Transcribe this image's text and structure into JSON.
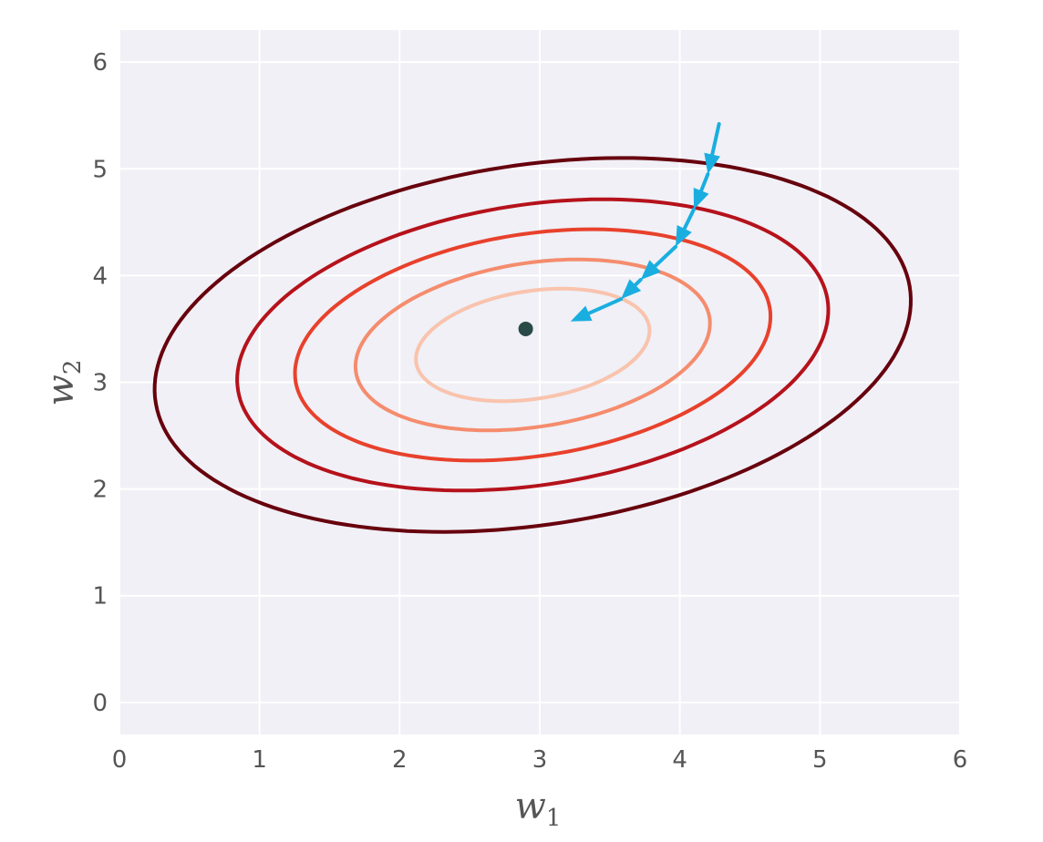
{
  "chart_data": {
    "type": "line",
    "title": "",
    "xlabel": "w",
    "xlabel_sub": "1",
    "ylabel": "w",
    "ylabel_sub": "2",
    "xlim": [
      0,
      6
    ],
    "ylim": [
      -0.3,
      6.3
    ],
    "xticks": [
      "0",
      "1",
      "2",
      "3",
      "4",
      "5",
      "6"
    ],
    "yticks": [
      "0",
      "1",
      "2",
      "3",
      "4",
      "5",
      "6"
    ],
    "grid": true,
    "background": "#f0f0f6",
    "grid_color": "#ffffff",
    "minimum_point": {
      "x": 2.9,
      "y": 3.5,
      "color": "#2a4a48"
    },
    "contours": [
      {
        "level": 1,
        "center": [
          2.95,
          3.35
        ],
        "a": 0.85,
        "b": 0.5,
        "angle_deg": 14,
        "color": "#f9c3ad"
      },
      {
        "level": 2,
        "center": [
          2.95,
          3.35
        ],
        "a": 1.29,
        "b": 0.76,
        "angle_deg": 14,
        "color": "#f58c6d"
      },
      {
        "level": 3,
        "center": [
          2.95,
          3.35
        ],
        "a": 1.73,
        "b": 1.03,
        "angle_deg": 14,
        "color": "#e8412c"
      },
      {
        "level": 4,
        "center": [
          2.95,
          3.35
        ],
        "a": 2.15,
        "b": 1.3,
        "angle_deg": 14,
        "color": "#b5121b"
      },
      {
        "level": 5,
        "center": [
          2.95,
          3.35
        ],
        "a": 2.75,
        "b": 1.67,
        "angle_deg": 14,
        "color": "#67000d"
      }
    ],
    "descent_path": {
      "color": "#1aaee0",
      "points": [
        [
          4.28,
          5.42
        ],
        [
          4.2,
          4.95
        ],
        [
          4.1,
          4.62
        ],
        [
          3.97,
          4.27
        ],
        [
          3.72,
          3.96
        ],
        [
          3.58,
          3.78
        ],
        [
          3.22,
          3.57
        ]
      ]
    }
  }
}
